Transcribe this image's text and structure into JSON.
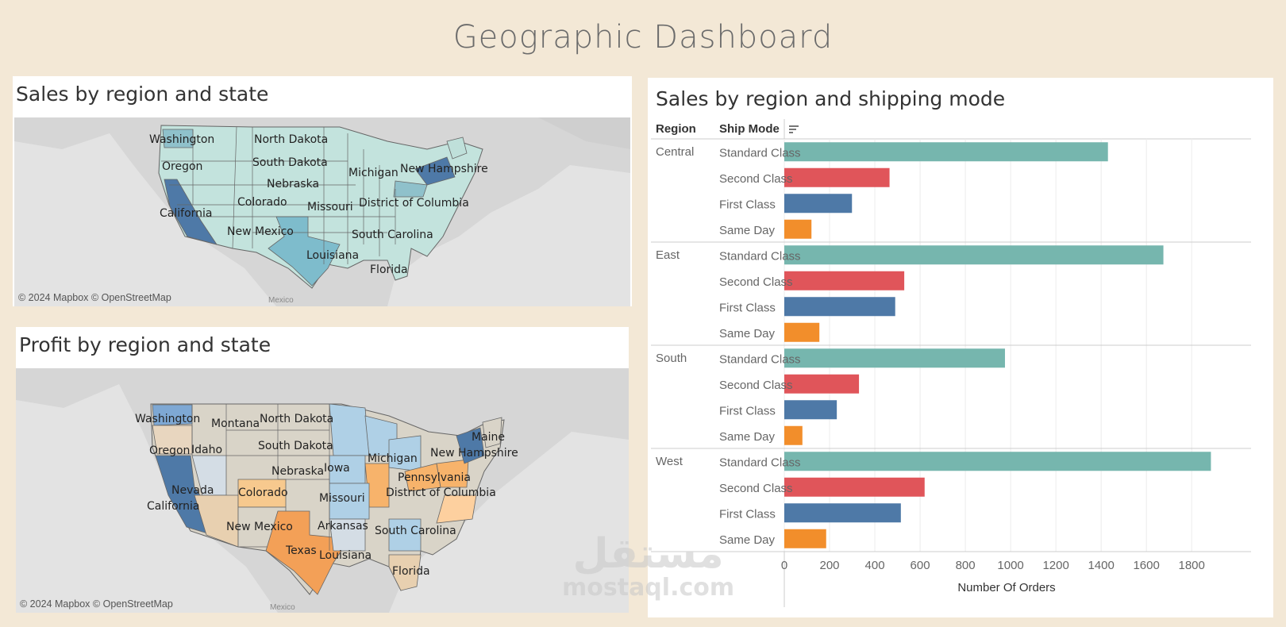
{
  "dashboard": {
    "title": "Geographic Dashboard"
  },
  "sales_map": {
    "title": "Sales by region and state",
    "credit": "© 2024 Mapbox © OpenStreetMap",
    "labels": [
      "Washington",
      "North Dakota",
      "Oregon",
      "South Dakota",
      "Michigan",
      "New Hampshire",
      "Nebraska",
      "Colorado",
      "Missouri",
      "District of Columbia",
      "California",
      "New Mexico",
      "South Carolina",
      "Louisiana",
      "Florida",
      "Mexico"
    ]
  },
  "profit_map": {
    "title": "Profit by region and state",
    "credit": "© 2024 Mapbox © OpenStreetMap",
    "labels": [
      "Washington",
      "Montana",
      "North Dakota",
      "Maine",
      "Oregon",
      "Idaho",
      "South Dakota",
      "New Hampshire",
      "Michigan",
      "Nebraska",
      "Iowa",
      "Pennsylvania",
      "Nevada",
      "Colorado",
      "Missouri",
      "District of Columbia",
      "California",
      "New Mexico",
      "Arkansas",
      "South Carolina",
      "Texas",
      "Louisiana",
      "Florida",
      "Mexico"
    ]
  },
  "bar_panel": {
    "title": "Sales by region and shipping mode",
    "header_region": "Region",
    "header_ship_mode": "Ship Mode",
    "sort_icon": "sort-icon"
  },
  "colors": {
    "Standard Class": "#76b6ae",
    "Second Class": "#e0555a",
    "First Class": "#4e79a7",
    "Same Day": "#f28e2b"
  },
  "chart_data": {
    "type": "bar",
    "orientation": "horizontal",
    "title": "Sales by region and shipping mode",
    "xlabel": "Number Of Orders",
    "xlim": [
      0,
      1880
    ],
    "xticks": [
      0,
      200,
      400,
      600,
      800,
      1000,
      1200,
      1400,
      1600,
      1800
    ],
    "grid": true,
    "regions": [
      {
        "name": "Central",
        "modes": [
          {
            "mode": "Standard Class",
            "value": 1430
          },
          {
            "mode": "Second Class",
            "value": 465
          },
          {
            "mode": "First Class",
            "value": 299
          },
          {
            "mode": "Same Day",
            "value": 120
          }
        ]
      },
      {
        "name": "East",
        "modes": [
          {
            "mode": "Standard Class",
            "value": 1675
          },
          {
            "mode": "Second Class",
            "value": 530
          },
          {
            "mode": "First Class",
            "value": 490
          },
          {
            "mode": "Same Day",
            "value": 155
          }
        ]
      },
      {
        "name": "South",
        "modes": [
          {
            "mode": "Standard Class",
            "value": 975
          },
          {
            "mode": "Second Class",
            "value": 330
          },
          {
            "mode": "First Class",
            "value": 232
          },
          {
            "mode": "Same Day",
            "value": 80
          }
        ]
      },
      {
        "name": "West",
        "modes": [
          {
            "mode": "Standard Class",
            "value": 1885
          },
          {
            "mode": "Second Class",
            "value": 620
          },
          {
            "mode": "First Class",
            "value": 515
          },
          {
            "mode": "Same Day",
            "value": 185
          }
        ]
      }
    ]
  },
  "watermark": {
    "arabic": "مستقل",
    "latin": "mostaql.com"
  }
}
